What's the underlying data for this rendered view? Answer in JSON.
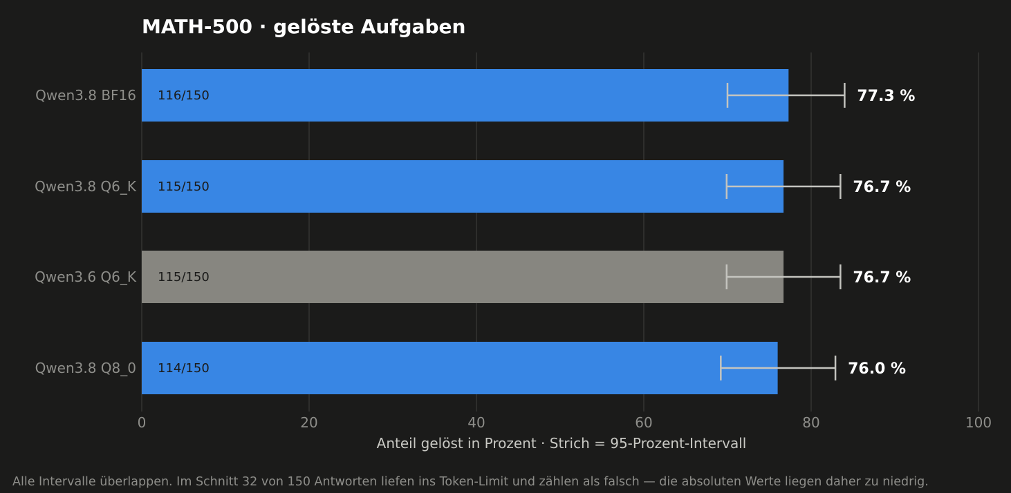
{
  "chart_data": {
    "type": "bar",
    "orientation": "horizontal",
    "title": "MATH-500  ·  gelöste Aufgaben",
    "xlabel": "Anteil gelöst in Prozent  ·  Strich = 95-Prozent-Intervall",
    "xlim": [
      0,
      100
    ],
    "xticks": [
      "0",
      "20",
      "40",
      "60",
      "80",
      "100"
    ],
    "grid": true,
    "categories": [
      "Qwen3.8  BF16",
      "Qwen3.8  Q6_K",
      "Qwen3.6  Q6_K",
      "Qwen3.8  Q8_0"
    ],
    "values": [
      77.3,
      76.7,
      76.7,
      76.0
    ],
    "value_labels": [
      "77.3 %",
      "76.7 %",
      "76.7 %",
      "76.0 %"
    ],
    "counts": [
      "116/150",
      "115/150",
      "115/150",
      "114/150"
    ],
    "ci_low": [
      70.0,
      69.9,
      69.9,
      69.2
    ],
    "ci_high": [
      84.0,
      83.5,
      83.5,
      82.9
    ],
    "bar_colors": [
      "#3886e4",
      "#3886e4",
      "#878680",
      "#3886e4"
    ],
    "footnote": "Alle Intervalle überlappen.  Im Schnitt 32 von 150 Antworten liefen ins Token-Limit und zählen als falsch — die absoluten Werte liegen daher zu niedrig."
  },
  "colors": {
    "background": "#1b1b1a",
    "grid": "#2e2e2c",
    "error_bar": "#c4c4bf"
  }
}
